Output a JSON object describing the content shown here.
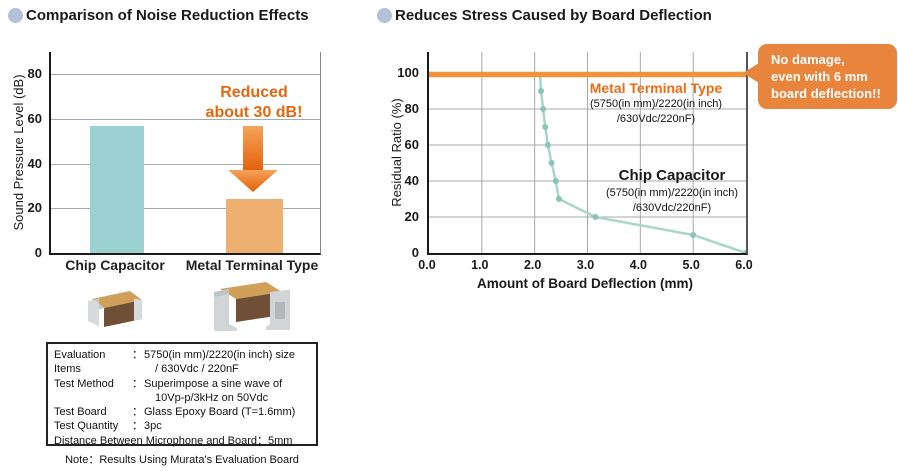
{
  "palette": {
    "bullet": "#b3c2d6",
    "teal_bar": "#9cd1d3",
    "orange_bar": "#eeb071",
    "orange_accent": "#e4670f",
    "arrow_top": "#f5a45a",
    "arrow_bottom": "#e25f08",
    "orange_line": "#f0923e",
    "teal_line": "#a8d6ca",
    "teal_marker": "#8cc3b8",
    "callout_bg": "#e8843b",
    "grid": "#a8a8a8"
  },
  "left": {
    "title": "Comparison of Noise Reduction Effects",
    "annotation": {
      "line1": "Reduced",
      "line2": "about 30 dB!"
    },
    "eval_box": {
      "rows": [
        {
          "label": "Evaluation Items",
          "colon": "：",
          "lines": [
            "5750(in mm)/2220(in inch) size",
            "/ 630Vdc / 220nF"
          ],
          "full": false
        },
        {
          "label": "Test Method",
          "colon": "：",
          "lines": [
            "Superimpose a sine wave of",
            "10Vp-p/3kHz on 50Vdc"
          ],
          "full": false
        },
        {
          "label": "Test Board",
          "colon": "：",
          "lines": [
            "Glass Epoxy Board (T=1.6mm)"
          ],
          "full": false
        },
        {
          "label": "Test Quantity",
          "colon": "：",
          "lines": [
            "3pc"
          ],
          "full": false
        },
        {
          "label": "Distance Between Microphone and Board",
          "colon": "：",
          "lines": [
            "5mm"
          ],
          "full": true
        }
      ]
    },
    "note": "Note：Results Using Murata's Evaluation Board"
  },
  "right": {
    "title": "Reduces Stress Caused by Board Deflection",
    "series_labels": {
      "metal": {
        "name": "Metal Terminal Type",
        "spec1": "(5750(in mm)/2220(in inch)",
        "spec2": "/630Vdc/220nF)"
      },
      "chip": {
        "name": "Chip Capacitor",
        "spec1": "(5750(in mm)/2220(in inch)",
        "spec2": "/630Vdc/220nF)"
      }
    },
    "callout": {
      "lines": [
        "No damage,",
        "even with 6 mm",
        "board deflection!!"
      ]
    }
  },
  "chart_data": [
    {
      "type": "bar",
      "title": "Comparison of Noise Reduction Effects",
      "ylabel": "Sound Pressure Level (dB)",
      "categories": [
        "Chip Capacitor",
        "Metal Terminal Type"
      ],
      "values": [
        57,
        24
      ],
      "bar_colors": [
        "#9cd1d3",
        "#eeb071"
      ],
      "ylim": [
        0,
        90
      ],
      "yticks": [
        0,
        20,
        40,
        60,
        80
      ],
      "grid": "horizontal",
      "annotation": "Reduced about 30 dB!"
    },
    {
      "type": "line",
      "title": "Reduces Stress Caused by Board Deflection",
      "xlabel": "Amount of Board Deflection (mm)",
      "ylabel": "Residual Ratio (%)",
      "xlim": [
        0,
        6
      ],
      "ylim": [
        0,
        100
      ],
      "xticks": [
        0,
        1,
        2,
        3,
        4,
        5,
        6
      ],
      "xtick_labels": [
        "0.0",
        "1.0",
        "2.0",
        "3.0",
        "4.0",
        "5.0",
        "6.0"
      ],
      "yticks": [
        0,
        20,
        40,
        60,
        80,
        100
      ],
      "grid": "both",
      "legend_position": "inside",
      "series": [
        {
          "name": "Metal Terminal Type",
          "spec": "(5750(in mm)/2220(in inch)/630Vdc/220nF)",
          "color": "#f0923e",
          "points": [
            [
              0,
              100
            ],
            [
              6,
              100
            ]
          ]
        },
        {
          "name": "Chip Capacitor",
          "spec": "(5750(in mm)/2220(in inch)/630Vdc/220nF)",
          "color": "#a8d6ca",
          "points": [
            [
              2.1,
              100
            ],
            [
              2.12,
              90
            ],
            [
              2.16,
              80
            ],
            [
              2.2,
              70
            ],
            [
              2.25,
              60
            ],
            [
              2.32,
              50
            ],
            [
              2.4,
              40
            ],
            [
              2.46,
              30
            ],
            [
              3.15,
              20
            ],
            [
              5.0,
              10
            ],
            [
              6.0,
              0
            ]
          ]
        }
      ],
      "annotation": "No damage, even with 6 mm board deflection!!"
    }
  ]
}
